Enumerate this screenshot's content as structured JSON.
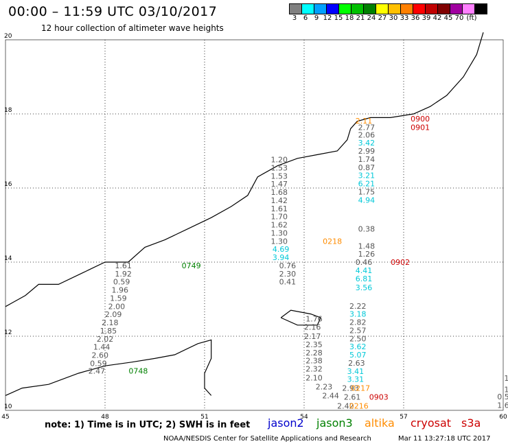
{
  "header": {
    "title": "00:00 – 11:59 UTC 03/10/2017",
    "subtitle": "12 hour collection of altimeter wave heights"
  },
  "legend": {
    "colors": [
      "#808080",
      "#00ffff",
      "#00a0ff",
      "#0000ff",
      "#00ff00",
      "#00c000",
      "#008000",
      "#ffff00",
      "#ffc000",
      "#ff8000",
      "#ff0000",
      "#c00000",
      "#800000",
      "#a000a0",
      "#ff80ff",
      "#000000"
    ],
    "labels": [
      "3",
      "6",
      "9",
      "12",
      "15",
      "18",
      "21",
      "24",
      "27",
      "30",
      "33",
      "36",
      "39",
      "42",
      "45",
      "70",
      "(ft)"
    ]
  },
  "axes": {
    "lon_ticks": [
      "45",
      "48",
      "51",
      "54",
      "57",
      "60"
    ],
    "lat_ticks": [
      "20",
      "18",
      "16",
      "14",
      "12",
      "10"
    ]
  },
  "satellites": {
    "colors": {
      "jason2": "#0000cc",
      "jason3": "#008000",
      "altika": "#ff8c00",
      "cryosat": "#cc0000",
      "s3a": "#cc0000",
      "gray": "#555555",
      "cyan": "#00c8d8"
    },
    "labels": [
      "jason2",
      "jason3",
      "altika",
      "cryosat",
      "s3a"
    ]
  },
  "observations": [
    {
      "lon": 55.8,
      "lat": 17.8,
      "text": "2.11",
      "color": "altika"
    },
    {
      "lon": 57.5,
      "lat": 17.85,
      "text": "0900",
      "color": "cryosat"
    },
    {
      "lon": 57.5,
      "lat": 17.62,
      "text": "0901",
      "color": "cryosat"
    },
    {
      "lon": 55.88,
      "lat": 17.62,
      "text": "2.77",
      "color": "gray"
    },
    {
      "lon": 55.88,
      "lat": 17.42,
      "text": "2.06",
      "color": "gray"
    },
    {
      "lon": 55.88,
      "lat": 17.2,
      "text": "3.42",
      "color": "cyan"
    },
    {
      "lon": 55.88,
      "lat": 16.98,
      "text": "2.99",
      "color": "gray"
    },
    {
      "lon": 55.88,
      "lat": 16.76,
      "text": "1.74",
      "color": "gray"
    },
    {
      "lon": 55.88,
      "lat": 16.54,
      "text": "0.87",
      "color": "gray"
    },
    {
      "lon": 55.88,
      "lat": 16.32,
      "text": "3.21",
      "color": "cyan"
    },
    {
      "lon": 55.88,
      "lat": 16.1,
      "text": "6.21",
      "color": "cyan"
    },
    {
      "lon": 55.88,
      "lat": 15.88,
      "text": "1.75",
      "color": "gray"
    },
    {
      "lon": 55.88,
      "lat": 15.66,
      "text": "4.94",
      "color": "cyan"
    },
    {
      "lon": 55.88,
      "lat": 14.88,
      "text": "0.38",
      "color": "gray"
    },
    {
      "lon": 55.88,
      "lat": 14.42,
      "text": "1.48",
      "color": "gray"
    },
    {
      "lon": 55.88,
      "lat": 14.2,
      "text": "1.26",
      "color": "gray"
    },
    {
      "lon": 55.8,
      "lat": 13.98,
      "text": "0.46",
      "color": "gray"
    },
    {
      "lon": 56.9,
      "lat": 13.98,
      "text": "0902",
      "color": "cryosat"
    },
    {
      "lon": 55.8,
      "lat": 13.76,
      "text": "4.41",
      "color": "cyan"
    },
    {
      "lon": 55.8,
      "lat": 13.54,
      "text": "6.81",
      "color": "cyan"
    },
    {
      "lon": 55.8,
      "lat": 13.3,
      "text": "3.56",
      "color": "cyan"
    },
    {
      "lon": 55.62,
      "lat": 12.8,
      "text": "2.22",
      "color": "gray"
    },
    {
      "lon": 55.62,
      "lat": 12.58,
      "text": "3.18",
      "color": "cyan"
    },
    {
      "lon": 55.62,
      "lat": 12.36,
      "text": "2.82",
      "color": "gray"
    },
    {
      "lon": 55.62,
      "lat": 12.14,
      "text": "2.57",
      "color": "gray"
    },
    {
      "lon": 55.62,
      "lat": 11.92,
      "text": "2.50",
      "color": "gray"
    },
    {
      "lon": 55.62,
      "lat": 11.7,
      "text": "3.62",
      "color": "cyan"
    },
    {
      "lon": 55.62,
      "lat": 11.48,
      "text": "5.07",
      "color": "cyan"
    },
    {
      "lon": 55.58,
      "lat": 11.26,
      "text": "2.63",
      "color": "gray"
    },
    {
      "lon": 55.55,
      "lat": 11.04,
      "text": "3.41",
      "color": "cyan"
    },
    {
      "lon": 55.55,
      "lat": 10.82,
      "text": "3.31",
      "color": "cyan"
    },
    {
      "lon": 55.4,
      "lat": 10.58,
      "text": "2.93",
      "color": "gray"
    },
    {
      "lon": 55.7,
      "lat": 10.58,
      "text": "0217",
      "color": "altika"
    },
    {
      "lon": 55.45,
      "lat": 10.34,
      "text": "2.61",
      "color": "gray"
    },
    {
      "lon": 56.25,
      "lat": 10.34,
      "text": "0903",
      "color": "cryosat"
    },
    {
      "lon": 55.25,
      "lat": 10.1,
      "text": "2.42",
      "color": "gray"
    },
    {
      "lon": 55.65,
      "lat": 10.1,
      "text": "0216",
      "color": "altika"
    },
    {
      "lon": 53.25,
      "lat": 16.75,
      "text": "1.20",
      "color": "gray"
    },
    {
      "lon": 53.25,
      "lat": 16.53,
      "text": "1.53",
      "color": "gray"
    },
    {
      "lon": 53.25,
      "lat": 16.31,
      "text": "1.53",
      "color": "gray"
    },
    {
      "lon": 53.25,
      "lat": 16.09,
      "text": "1.47",
      "color": "gray"
    },
    {
      "lon": 53.25,
      "lat": 15.87,
      "text": "1.68",
      "color": "gray"
    },
    {
      "lon": 53.25,
      "lat": 15.65,
      "text": "1.42",
      "color": "gray"
    },
    {
      "lon": 53.25,
      "lat": 15.43,
      "text": "1.61",
      "color": "gray"
    },
    {
      "lon": 53.25,
      "lat": 15.21,
      "text": "1.70",
      "color": "gray"
    },
    {
      "lon": 53.25,
      "lat": 14.99,
      "text": "1.62",
      "color": "gray"
    },
    {
      "lon": 53.25,
      "lat": 14.77,
      "text": "1.30",
      "color": "gray"
    },
    {
      "lon": 53.25,
      "lat": 14.55,
      "text": "1.30",
      "color": "gray"
    },
    {
      "lon": 54.85,
      "lat": 14.55,
      "text": "0218",
      "color": "altika"
    },
    {
      "lon": 53.3,
      "lat": 14.33,
      "text": "4.69",
      "color": "cyan"
    },
    {
      "lon": 53.3,
      "lat": 14.11,
      "text": "3.94",
      "color": "cyan"
    },
    {
      "lon": 53.5,
      "lat": 13.89,
      "text": "0.76",
      "color": "gray"
    },
    {
      "lon": 53.5,
      "lat": 13.67,
      "text": "2.30",
      "color": "gray"
    },
    {
      "lon": 53.5,
      "lat": 13.45,
      "text": "0.41",
      "color": "gray"
    },
    {
      "lon": 54.3,
      "lat": 12.45,
      "text": "1.76",
      "color": "gray"
    },
    {
      "lon": 54.25,
      "lat": 12.23,
      "text": "2.16",
      "color": "gray"
    },
    {
      "lon": 54.25,
      "lat": 11.98,
      "text": "2.17",
      "color": "gray"
    },
    {
      "lon": 54.3,
      "lat": 11.76,
      "text": "2.35",
      "color": "gray"
    },
    {
      "lon": 54.3,
      "lat": 11.54,
      "text": "2.28",
      "color": "gray"
    },
    {
      "lon": 54.3,
      "lat": 11.32,
      "text": "2.38",
      "color": "gray"
    },
    {
      "lon": 54.3,
      "lat": 11.1,
      "text": "2.32",
      "color": "gray"
    },
    {
      "lon": 54.3,
      "lat": 10.86,
      "text": "2.10",
      "color": "gray"
    },
    {
      "lon": 54.6,
      "lat": 10.62,
      "text": "2.23",
      "color": "gray"
    },
    {
      "lon": 54.8,
      "lat": 10.38,
      "text": "2.44",
      "color": "gray"
    },
    {
      "lon": 48.55,
      "lat": 13.89,
      "text": "1.61",
      "color": "gray"
    },
    {
      "lon": 50.6,
      "lat": 13.89,
      "text": "0749",
      "color": "jason3"
    },
    {
      "lon": 48.55,
      "lat": 13.67,
      "text": "1.92",
      "color": "gray"
    },
    {
      "lon": 48.5,
      "lat": 13.45,
      "text": "0.59",
      "color": "gray"
    },
    {
      "lon": 48.45,
      "lat": 13.23,
      "text": "1.96",
      "color": "gray"
    },
    {
      "lon": 48.4,
      "lat": 13.01,
      "text": "1.59",
      "color": "gray"
    },
    {
      "lon": 48.35,
      "lat": 12.79,
      "text": "2.00",
      "color": "gray"
    },
    {
      "lon": 48.25,
      "lat": 12.57,
      "text": "2.09",
      "color": "gray"
    },
    {
      "lon": 48.15,
      "lat": 12.35,
      "text": "2.18",
      "color": "gray"
    },
    {
      "lon": 48.1,
      "lat": 12.13,
      "text": "1.85",
      "color": "gray"
    },
    {
      "lon": 48.0,
      "lat": 11.91,
      "text": "2.02",
      "color": "gray"
    },
    {
      "lon": 47.9,
      "lat": 11.69,
      "text": "1.44",
      "color": "gray"
    },
    {
      "lon": 47.85,
      "lat": 11.47,
      "text": "2.60",
      "color": "gray"
    },
    {
      "lon": 47.8,
      "lat": 11.25,
      "text": "0.59",
      "color": "gray"
    },
    {
      "lon": 47.75,
      "lat": 11.05,
      "text": "2.47",
      "color": "gray"
    },
    {
      "lon": 49.0,
      "lat": 11.05,
      "text": "0748",
      "color": "jason3"
    },
    {
      "lon": 60.1,
      "lat": 10.85,
      "text": "1",
      "color": "gray"
    },
    {
      "lon": 60.1,
      "lat": 10.55,
      "text": "1",
      "color": "gray"
    },
    {
      "lon": 60.0,
      "lat": 10.35,
      "text": "0.5",
      "color": "gray"
    },
    {
      "lon": 60.0,
      "lat": 10.12,
      "text": "1.6",
      "color": "gray"
    }
  ],
  "footer": {
    "note": "note: 1) Time is in UTC; 2) SWH is in feet",
    "credit": "NOAA/NESDIS Center for Satellite Applications and Research",
    "timestamp": "Mar 11 13:27:18 UTC 2017"
  }
}
